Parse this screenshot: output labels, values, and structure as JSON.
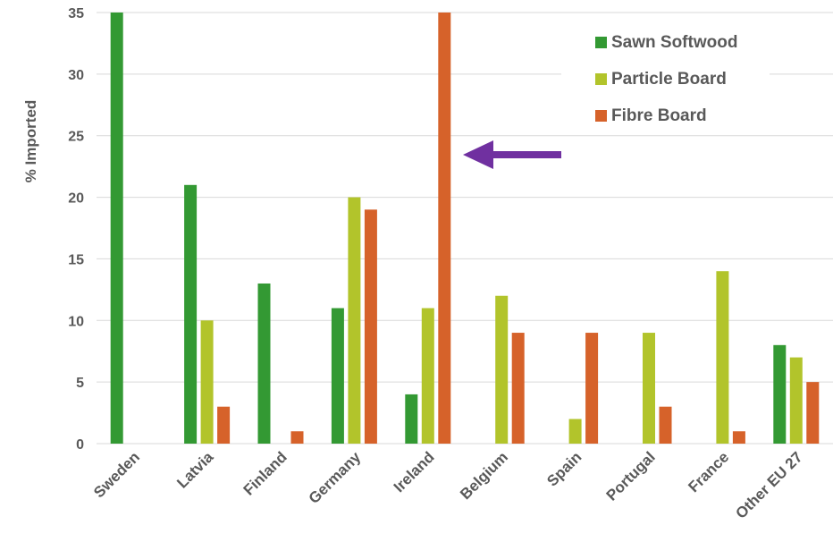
{
  "chart_data": {
    "type": "bar",
    "ylabel": "% Imported",
    "xlabel": "",
    "ylim": [
      0,
      35
    ],
    "yticks": [
      0,
      5,
      10,
      15,
      20,
      25,
      30,
      35
    ],
    "grid": true,
    "legend_position": "top-right",
    "categories": [
      "Sweden",
      "Latvia",
      "Finland",
      "Germany",
      "Ireland",
      "Belgium",
      "Spain",
      "Portugal",
      "France",
      "Other EU 27"
    ],
    "series": [
      {
        "name": "Sawn Softwood",
        "color": "#339933",
        "values": [
          35,
          21,
          13,
          11,
          4,
          0,
          0,
          0,
          0,
          8
        ]
      },
      {
        "name": "Particle Board",
        "color": "#b2c42b",
        "values": [
          0,
          10,
          0,
          20,
          11,
          12,
          2,
          9,
          14,
          7
        ]
      },
      {
        "name": "Fibre Board",
        "color": "#d6622a",
        "values": [
          0,
          3,
          1,
          19,
          35,
          9,
          9,
          3,
          1,
          5
        ]
      }
    ],
    "annotation": {
      "type": "arrow",
      "color": "#7030a0",
      "points_to": "Ireland"
    }
  }
}
